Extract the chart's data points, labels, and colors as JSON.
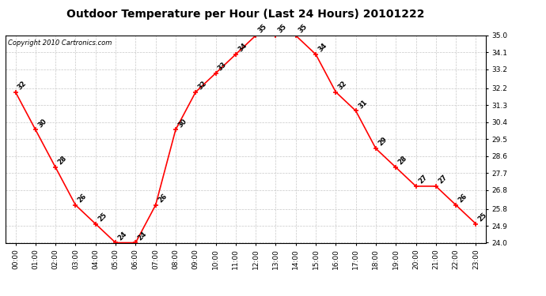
{
  "title": "Outdoor Temperature per Hour (Last 24 Hours) 20101222",
  "copyright": "Copyright 2010 Cartronics.com",
  "hours": [
    "00:00",
    "01:00",
    "02:00",
    "03:00",
    "04:00",
    "05:00",
    "06:00",
    "07:00",
    "08:00",
    "09:00",
    "10:00",
    "11:00",
    "12:00",
    "13:00",
    "14:00",
    "15:00",
    "16:00",
    "17:00",
    "18:00",
    "19:00",
    "20:00",
    "21:00",
    "22:00",
    "23:00"
  ],
  "temps": [
    32,
    30,
    28,
    26,
    25,
    24,
    24,
    26,
    30,
    32,
    33,
    34,
    35,
    35,
    35,
    34,
    32,
    31,
    29,
    28,
    27,
    27,
    26,
    25
  ],
  "ylim_min": 24.0,
  "ylim_max": 35.0,
  "yticks": [
    24.0,
    24.9,
    25.8,
    26.8,
    27.7,
    28.6,
    29.5,
    30.4,
    31.3,
    32.2,
    33.2,
    34.1,
    35.0
  ],
  "line_color": "red",
  "marker_color": "red",
  "marker_style": "+",
  "bg_color": "#ffffff",
  "grid_color": "#c8c8c8",
  "title_fontsize": 10,
  "label_fontsize": 6.5,
  "annot_fontsize": 6,
  "copyright_fontsize": 6
}
